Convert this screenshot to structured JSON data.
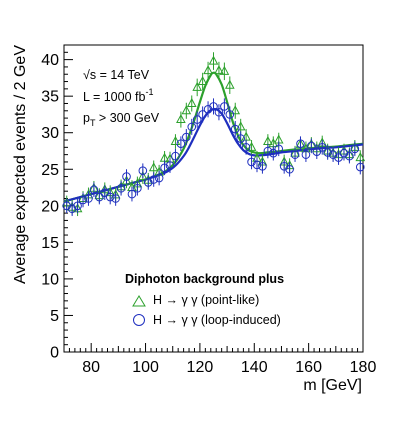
{
  "chart_data": {
    "type": "scatter",
    "xlabel": "m [GeV]",
    "ylabel": "Average expected events / 2 GeV",
    "xlim": [
      70,
      180
    ],
    "ylim": [
      0,
      42
    ],
    "x_ticks": [
      80,
      100,
      120,
      140,
      160,
      180
    ],
    "y_ticks": [
      0,
      5,
      10,
      15,
      20,
      25,
      30,
      35,
      40
    ],
    "grid": false,
    "legend_position": "bottom-center",
    "annotations": {
      "sqrt_s": "√s = 14 TeV",
      "lumi_main": "L = 1000 fb",
      "lumi_exp": "-1",
      "pt_p": "p",
      "pt_sub": "T",
      "pt_rest": " > 300 GeV"
    },
    "legend": {
      "title": "Diphoton background plus",
      "entries": [
        {
          "label": "H → γ γ  (point-like)",
          "marker": "triangle",
          "color": "#2ca02c"
        },
        {
          "label": "H → γ γ  (loop-induced)",
          "marker": "circle",
          "color": "#1f2fbf"
        }
      ]
    },
    "x": [
      71,
      73,
      75,
      77,
      79,
      81,
      83,
      85,
      87,
      89,
      91,
      93,
      95,
      97,
      99,
      101,
      103,
      105,
      107,
      109,
      111,
      113,
      115,
      117,
      119,
      121,
      123,
      125,
      127,
      129,
      131,
      133,
      135,
      137,
      139,
      141,
      143,
      145,
      147,
      149,
      151,
      153,
      155,
      157,
      159,
      161,
      163,
      165,
      167,
      169,
      171,
      173,
      175,
      177,
      179
    ],
    "series": [
      {
        "name": "H → γ γ  (point-like)",
        "marker": "triangle",
        "color": "#2ca02c",
        "values": [
          20.4,
          19.8,
          19.6,
          21.0,
          21.5,
          22.4,
          21.4,
          22.2,
          21.8,
          21.5,
          22.6,
          23.4,
          22.5,
          23.0,
          24.0,
          23.5,
          25.2,
          24.6,
          26.5,
          26.4,
          28.8,
          31.8,
          33.0,
          34.0,
          36.2,
          37.0,
          38.5,
          39.8,
          38.5,
          38.4,
          36.5,
          33.0,
          30.8,
          29.4,
          28.0,
          26.5,
          26.0,
          28.8,
          28.5,
          29.0,
          26.0,
          25.5,
          27.2,
          28.4,
          27.8,
          28.4,
          27.8,
          28.6,
          27.5,
          27.2,
          27.0,
          27.5,
          27.0,
          28.0,
          26.6
        ],
        "errors": [
          1.0,
          1.0,
          1.0,
          1.0,
          1.0,
          1.0,
          1.0,
          1.0,
          1.0,
          1.0,
          1.0,
          1.0,
          1.0,
          1.0,
          1.0,
          1.0,
          1.0,
          1.0,
          1.0,
          1.0,
          1.0,
          1.1,
          1.1,
          1.1,
          1.2,
          1.2,
          1.2,
          1.2,
          1.2,
          1.2,
          1.2,
          1.1,
          1.1,
          1.1,
          1.0,
          1.0,
          1.0,
          1.0,
          1.0,
          1.0,
          1.0,
          1.0,
          1.0,
          1.0,
          1.0,
          1.0,
          1.0,
          1.0,
          1.0,
          1.0,
          1.0,
          1.0,
          1.0,
          1.0,
          1.0
        ]
      },
      {
        "name": "H → γ γ  (loop-induced)",
        "marker": "circle",
        "color": "#1f2fbf",
        "values": [
          20.0,
          19.6,
          20.0,
          20.8,
          21.0,
          22.2,
          21.2,
          21.8,
          21.2,
          21.0,
          22.4,
          24.0,
          21.6,
          22.4,
          24.8,
          23.2,
          23.6,
          23.8,
          25.2,
          25.5,
          26.8,
          28.5,
          29.4,
          30.8,
          31.8,
          32.5,
          33.2,
          33.6,
          32.8,
          33.6,
          32.5,
          30.5,
          29.2,
          28.0,
          26.0,
          25.6,
          25.4,
          27.5,
          27.2,
          27.8,
          25.4,
          25.0,
          27.0,
          28.5,
          27.0,
          28.2,
          27.4,
          28.0,
          27.3,
          27.0,
          26.6,
          27.2,
          26.8,
          27.8,
          25.3
        ],
        "errors": [
          1.0,
          1.0,
          1.0,
          1.0,
          1.0,
          1.0,
          1.0,
          1.0,
          1.0,
          1.0,
          1.0,
          1.0,
          1.0,
          1.0,
          1.0,
          1.0,
          1.0,
          1.0,
          1.0,
          1.0,
          1.0,
          1.0,
          1.1,
          1.1,
          1.1,
          1.1,
          1.1,
          1.1,
          1.1,
          1.1,
          1.1,
          1.1,
          1.0,
          1.0,
          1.0,
          1.0,
          1.0,
          1.0,
          1.0,
          1.0,
          1.0,
          1.0,
          1.0,
          1.0,
          1.0,
          1.0,
          1.0,
          1.0,
          1.0,
          1.0,
          1.0,
          1.0,
          1.0,
          1.0,
          1.0
        ]
      }
    ],
    "fits": [
      {
        "color": "#2ca02c",
        "x": [
          70,
          75,
          80,
          85,
          90,
          95,
          100,
          105,
          108,
          111,
          114,
          116,
          118,
          120,
          122,
          124,
          125,
          126,
          128,
          130,
          132,
          134,
          136,
          138,
          140,
          142,
          145,
          150,
          155,
          160,
          165,
          170,
          175,
          180
        ],
        "y": [
          20.6,
          21.1,
          21.6,
          22.1,
          22.6,
          23.1,
          23.6,
          24.3,
          24.9,
          26.0,
          27.8,
          29.6,
          31.8,
          34.2,
          36.4,
          37.9,
          38.2,
          38.0,
          36.6,
          34.2,
          31.6,
          29.6,
          28.3,
          27.6,
          27.3,
          27.2,
          27.3,
          27.5,
          27.7,
          27.8,
          28.0,
          28.1,
          28.3,
          28.5
        ]
      },
      {
        "color": "#1f2fbf",
        "x": [
          70,
          75,
          80,
          85,
          90,
          95,
          100,
          105,
          108,
          111,
          114,
          116,
          118,
          120,
          122,
          124,
          126,
          128,
          130,
          132,
          134,
          136,
          138,
          140,
          142,
          145,
          150,
          155,
          160,
          165,
          170,
          175,
          180
        ],
        "y": [
          20.6,
          21.1,
          21.6,
          22.1,
          22.6,
          23.1,
          23.6,
          24.2,
          24.7,
          25.5,
          26.8,
          28.0,
          29.5,
          31.0,
          32.3,
          33.1,
          33.2,
          32.6,
          31.3,
          29.8,
          28.5,
          27.6,
          27.1,
          26.9,
          26.9,
          27.0,
          27.3,
          27.5,
          27.7,
          27.9,
          28.0,
          28.2,
          28.4
        ]
      }
    ]
  }
}
